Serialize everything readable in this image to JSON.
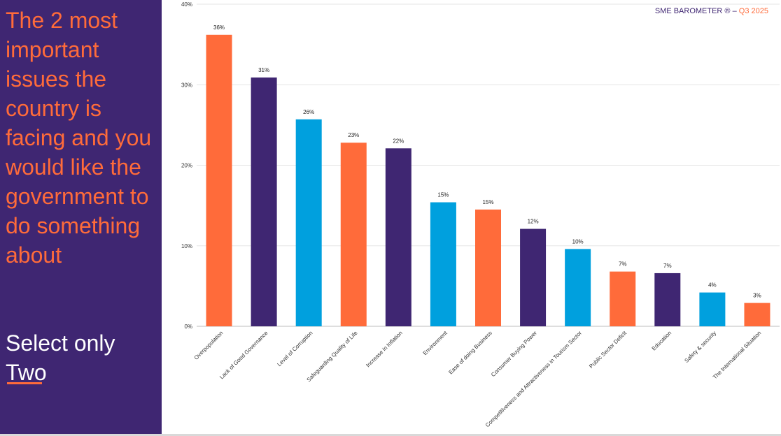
{
  "sidebar": {
    "question": "The 2 most important issues the country is facing and you would like the government to do something about",
    "instruction_line1": "Select only",
    "instruction_line2": "Two"
  },
  "header": {
    "brand": "SME BAROMETER ®",
    "separator": "–",
    "period": "Q3 2025"
  },
  "colors": {
    "orange": "#ff6b3a",
    "purple": "#3f2672",
    "blue": "#00a0de"
  },
  "chart_data": {
    "type": "bar",
    "categories": [
      "Overpopulation",
      "Lack of Good Governance",
      "Level of Corruption",
      "Safeguarding Quality of Life",
      "Increase in Inflation",
      "Environment",
      "Ease of doing Business",
      "Consumer Buying Power",
      "Competitiveness and Attractiveness in Tourism Sector",
      "Public Sector Deficit",
      "Education",
      "Safety & security",
      "The International Situation"
    ],
    "values": [
      36.2,
      30.9,
      25.7,
      22.8,
      22.1,
      15.4,
      14.5,
      12.1,
      9.6,
      6.8,
      6.6,
      4.2,
      2.9
    ],
    "data_labels": [
      "36%",
      "31%",
      "26%",
      "23%",
      "22%",
      "15%",
      "15%",
      "12%",
      "10%",
      "7%",
      "7%",
      "4%",
      "3%"
    ],
    "bar_colors": [
      "orange",
      "purple",
      "blue",
      "orange",
      "purple",
      "blue",
      "orange",
      "purple",
      "blue",
      "orange",
      "purple",
      "blue",
      "orange"
    ],
    "yticks": [
      0,
      10,
      20,
      30,
      40
    ],
    "ytick_labels": [
      "0%",
      "10%",
      "20%",
      "30%",
      "40%"
    ],
    "ylim": [
      0,
      40
    ],
    "grid": true,
    "legend": "none"
  }
}
